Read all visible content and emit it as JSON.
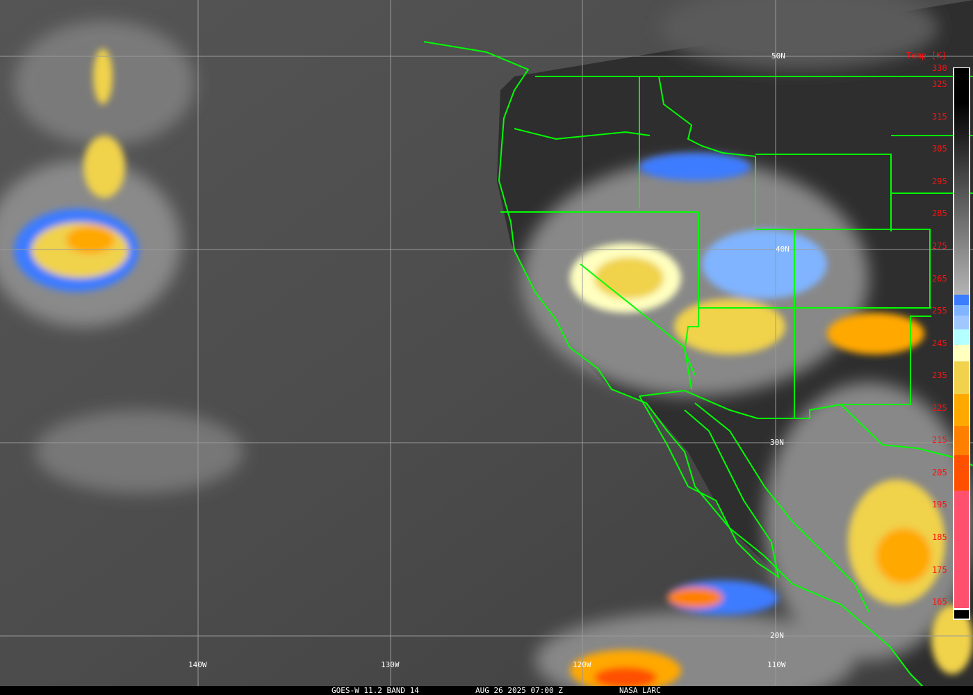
{
  "caption": {
    "satellite": "GOES-W 11.2 BAND 14",
    "datetime": "AUG 26 2025 07:00 Z",
    "credit": "NASA LARC"
  },
  "grid_labels": {
    "lat": [
      "50N",
      "40N",
      "30N",
      "20N"
    ],
    "lon": [
      "140W",
      "130W",
      "120W",
      "110W"
    ]
  },
  "colorbar": {
    "title": "Temp [K]",
    "ticks": [
      "330",
      "325",
      "315",
      "305",
      "295",
      "285",
      "275",
      "265",
      "255",
      "245",
      "235",
      "225",
      "215",
      "205",
      "195",
      "185",
      "175",
      "165"
    ],
    "colors": {
      "warm_top": "#000000",
      "cool_gray": "#b0b0b0",
      "blue": "#3c7cff",
      "light_blue": "#80b4ff",
      "cyan": "#b4ffff",
      "pale_yellow": "#ffffc0",
      "yellow": "#f0d24c",
      "orange": "#ffa800",
      "dark_orange": "#ff8000",
      "red_orange": "#ff5000",
      "pink": "#ff506e"
    }
  },
  "overlay_color": "#00ff00"
}
